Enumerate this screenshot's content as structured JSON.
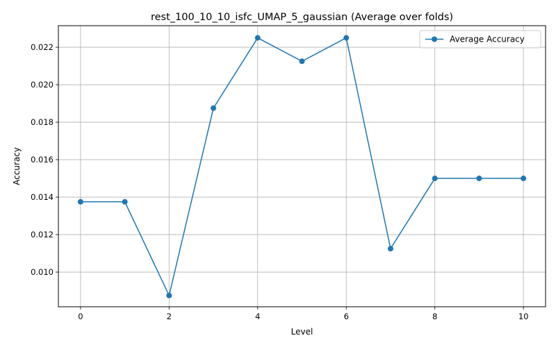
{
  "chart_data": {
    "type": "line",
    "title": "rest_100_10_10_isfc_UMAP_5_gaussian (Average over folds)",
    "xlabel": "Level",
    "ylabel": "Accuracy",
    "xlim": [
      -0.5,
      10.5
    ],
    "ylim": [
      0.00815,
      0.02315
    ],
    "x_ticks": [
      0,
      2,
      4,
      6,
      8,
      10
    ],
    "x_tick_labels": [
      "0",
      "2",
      "4",
      "6",
      "8",
      "10"
    ],
    "y_ticks": [
      0.01,
      0.012,
      0.014,
      0.016,
      0.018,
      0.02,
      0.022
    ],
    "y_tick_labels": [
      "0.010",
      "0.012",
      "0.014",
      "0.016",
      "0.018",
      "0.020",
      "0.022"
    ],
    "grid": true,
    "legend_position": "upper right",
    "colors": {
      "series": "#1f77b4",
      "grid": "#b0b0b0",
      "axis": "#000000"
    },
    "series": [
      {
        "name": "Average Accuracy",
        "marker": "circle",
        "x": [
          0,
          1,
          2,
          3,
          4,
          5,
          6,
          7,
          8,
          9,
          10
        ],
        "y": [
          0.01375,
          0.01375,
          0.00875,
          0.01875,
          0.0225,
          0.02125,
          0.0225,
          0.01125,
          0.015,
          0.015,
          0.015
        ]
      }
    ]
  }
}
